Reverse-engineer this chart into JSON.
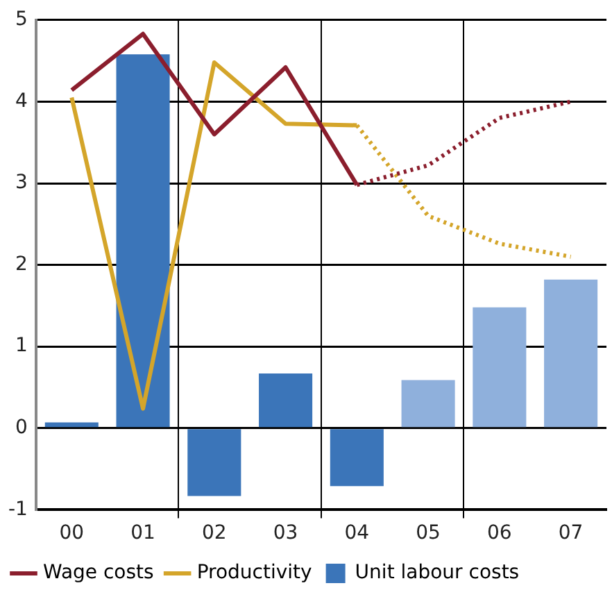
{
  "chart_data": {
    "type": "bar",
    "categories": [
      "00",
      "01",
      "02",
      "03",
      "04",
      "05",
      "06",
      "07"
    ],
    "series": [
      {
        "name": "Wage costs",
        "type": "line",
        "line_style": "solid",
        "color": "#8b1e2d",
        "values": [
          4.14,
          4.83,
          3.6,
          4.42,
          2.98,
          null,
          null,
          null
        ]
      },
      {
        "name": "Productivity",
        "type": "line",
        "line_style": "solid",
        "color": "#d4a52a",
        "values": [
          4.05,
          0.24,
          4.48,
          3.73,
          3.71,
          null,
          null,
          null
        ]
      },
      {
        "name": "Unit labour costs",
        "color": "#3b75b9",
        "colors": [
          "#3b75b9",
          "#3b75b9",
          "#3b75b9",
          "#3b75b9",
          "#3b75b9",
          "#8fb0dc",
          "#8fb0dc",
          "#8fb0dc"
        ],
        "values": [
          0.07,
          4.58,
          -0.83,
          0.67,
          -0.71,
          0.59,
          1.48,
          1.82
        ]
      },
      {
        "type": "line",
        "line_style": "dotted",
        "color": "#8b1e2d",
        "values": [
          null,
          null,
          null,
          null,
          2.98,
          3.22,
          3.8,
          4.0
        ]
      },
      {
        "type": "line",
        "line_style": "dotted",
        "color": "#d4a52a",
        "values": [
          null,
          null,
          null,
          null,
          3.71,
          2.6,
          2.26,
          2.1
        ]
      }
    ],
    "ylim": [
      -1,
      5
    ],
    "yticks": [
      -1,
      0,
      1,
      2,
      3,
      4,
      5
    ],
    "grid": true,
    "marker": "none",
    "legend": "bottom"
  }
}
